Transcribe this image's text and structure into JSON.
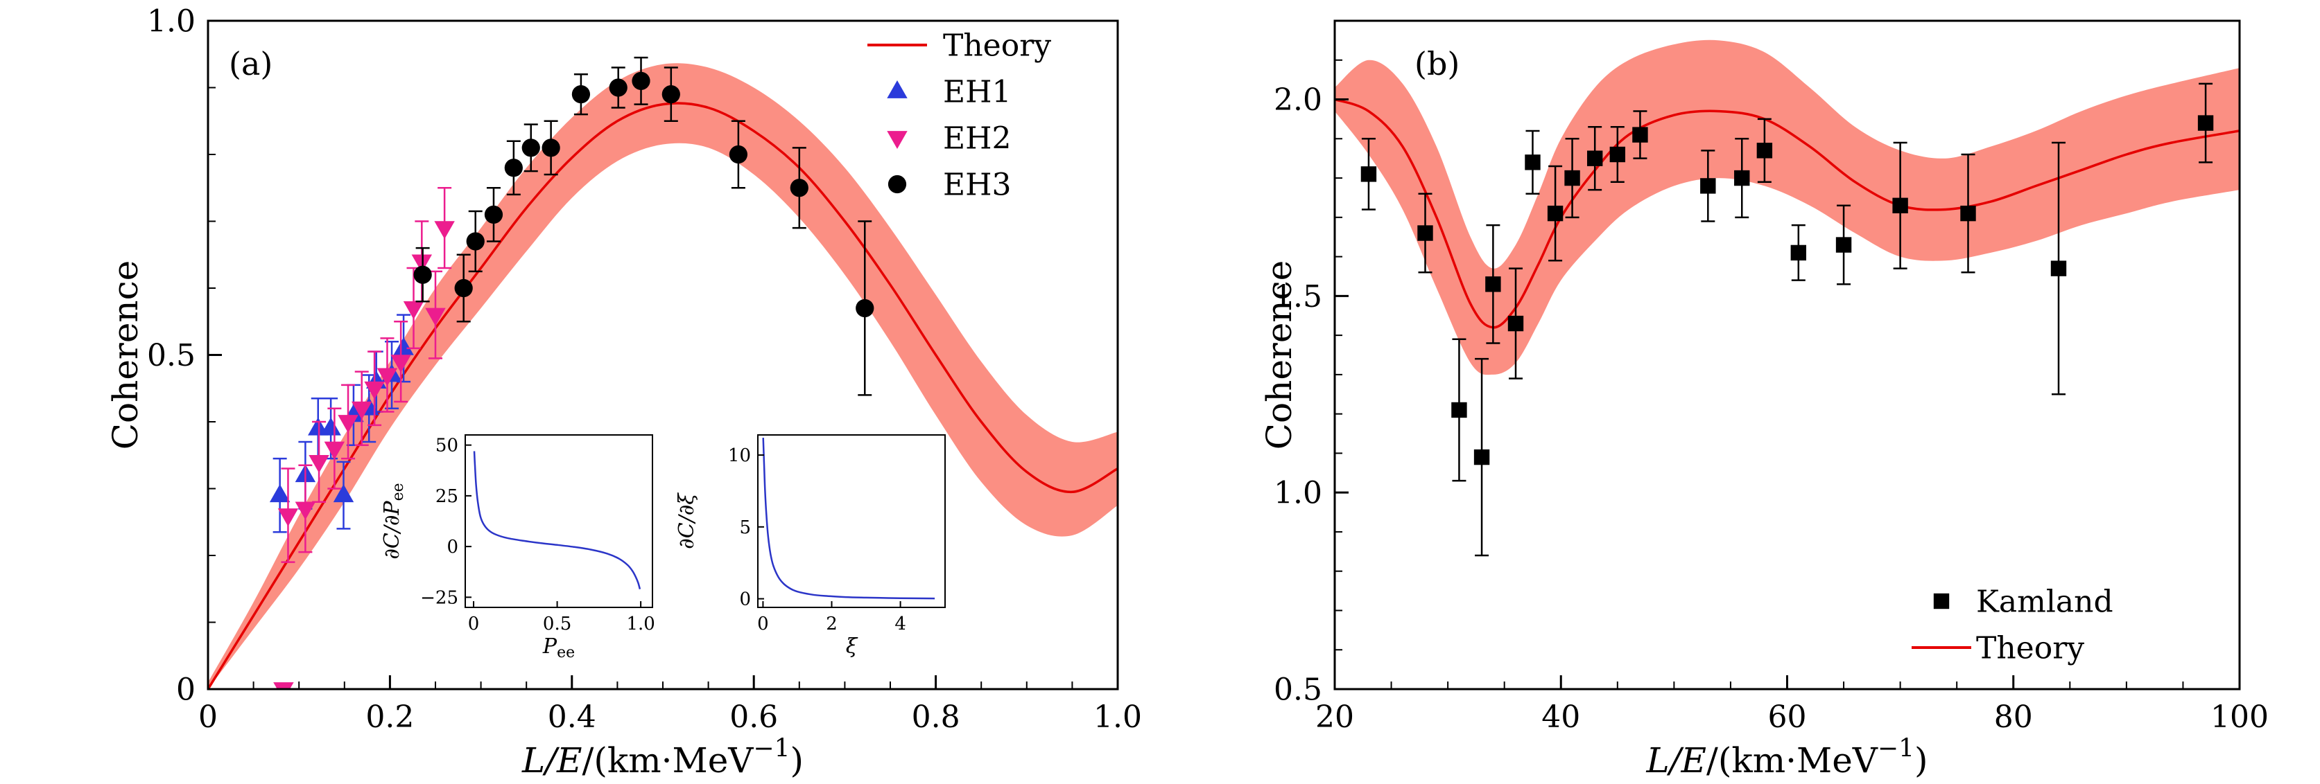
{
  "figure": {
    "background": "#ffffff"
  },
  "chart_data": [
    {
      "id": "a",
      "type": "line",
      "panel_label": "(a)",
      "xlabel_parts": [
        {
          "t": "L/E",
          "i": true
        },
        {
          "t": "/(km·MeV"
        },
        {
          "t": "−1",
          "sup": true
        },
        {
          "t": ")"
        }
      ],
      "ylabel": "Coherence",
      "xlim": [
        0,
        1.0
      ],
      "ylim": [
        0,
        1.0
      ],
      "xticks": {
        "values": [
          0,
          0.2,
          0.4,
          0.6,
          0.8,
          1.0
        ],
        "labels": [
          "0",
          "0.2",
          "0.4",
          "0.6",
          "0.8",
          "1.0"
        ],
        "minor_step": 0.05
      },
      "yticks": {
        "values": [
          0,
          0.5,
          1.0
        ],
        "labels": [
          "0",
          "0.5",
          "1.0"
        ],
        "minor_step": 0.1
      },
      "band": {
        "color": "#fa8072",
        "opacity": 0.88,
        "x": [
          0,
          0.05,
          0.1,
          0.15,
          0.2,
          0.25,
          0.3,
          0.35,
          0.4,
          0.45,
          0.5,
          0.55,
          0.6,
          0.65,
          0.7,
          0.75,
          0.8,
          0.85,
          0.9,
          0.95,
          1.0
        ],
        "upper": [
          0.01,
          0.13,
          0.26,
          0.38,
          0.49,
          0.6,
          0.69,
          0.78,
          0.855,
          0.91,
          0.935,
          0.93,
          0.9,
          0.85,
          0.78,
          0.69,
          0.59,
          0.49,
          0.41,
          0.37,
          0.385
        ],
        "lower": [
          0,
          0.09,
          0.18,
          0.28,
          0.39,
          0.485,
          0.57,
          0.655,
          0.735,
          0.79,
          0.815,
          0.81,
          0.77,
          0.705,
          0.62,
          0.52,
          0.41,
          0.31,
          0.245,
          0.23,
          0.275
        ]
      },
      "theory": {
        "label": "Theory",
        "color": "#e50000",
        "x": [
          0,
          0.05,
          0.1,
          0.15,
          0.2,
          0.25,
          0.3,
          0.35,
          0.4,
          0.45,
          0.5,
          0.55,
          0.6,
          0.65,
          0.7,
          0.75,
          0.8,
          0.85,
          0.9,
          0.95,
          1.0
        ],
        "y": [
          0,
          0.11,
          0.22,
          0.33,
          0.44,
          0.54,
          0.63,
          0.72,
          0.795,
          0.85,
          0.875,
          0.87,
          0.835,
          0.78,
          0.7,
          0.605,
          0.5,
          0.4,
          0.325,
          0.295,
          0.33
        ]
      },
      "series": [
        {
          "name": "EH1",
          "marker": "triangle-up",
          "color": "#2b3bdb",
          "points": [
            [
              0.079,
              0.29,
              0.055
            ],
            [
              0.107,
              0.32,
              0.05
            ],
            [
              0.121,
              0.39,
              0.045
            ],
            [
              0.135,
              0.39,
              0.045
            ],
            [
              0.149,
              0.29,
              0.05
            ],
            [
              0.16,
              0.41,
              0.045
            ],
            [
              0.177,
              0.42,
              0.05
            ],
            [
              0.185,
              0.46,
              0.045
            ],
            [
              0.202,
              0.47,
              0.05
            ],
            [
              0.215,
              0.51,
              0.05
            ]
          ]
        },
        {
          "name": "EH2",
          "marker": "triangle-down",
          "color": "#ec1d8e",
          "points": [
            [
              0.083,
              0.0,
              0
            ],
            [
              0.088,
              0.26,
              0.07
            ],
            [
              0.107,
              0.27,
              0.065
            ],
            [
              0.122,
              0.34,
              0.06
            ],
            [
              0.139,
              0.36,
              0.06
            ],
            [
              0.154,
              0.4,
              0.055
            ],
            [
              0.169,
              0.42,
              0.055
            ],
            [
              0.183,
              0.45,
              0.055
            ],
            [
              0.197,
              0.47,
              0.055
            ],
            [
              0.212,
              0.49,
              0.06
            ],
            [
              0.226,
              0.57,
              0.06
            ],
            [
              0.235,
              0.64,
              0.06
            ],
            [
              0.25,
              0.56,
              0.065
            ],
            [
              0.26,
              0.69,
              0.06
            ]
          ]
        },
        {
          "name": "EH3",
          "marker": "circle",
          "color": "#000000",
          "points": [
            [
              0.236,
              0.62,
              0.04
            ],
            [
              0.281,
              0.6,
              0.05
            ],
            [
              0.294,
              0.67,
              0.045
            ],
            [
              0.314,
              0.71,
              0.04
            ],
            [
              0.336,
              0.78,
              0.04
            ],
            [
              0.355,
              0.81,
              0.035
            ],
            [
              0.377,
              0.81,
              0.04
            ],
            [
              0.41,
              0.89,
              0.03
            ],
            [
              0.451,
              0.9,
              0.03
            ],
            [
              0.476,
              0.91,
              0.035
            ],
            [
              0.509,
              0.89,
              0.04
            ],
            [
              0.583,
              0.8,
              0.05
            ],
            [
              0.65,
              0.75,
              0.06
            ],
            [
              0.722,
              0.57,
              0.13
            ]
          ]
        }
      ],
      "legend": {
        "items": [
          {
            "label": "Theory",
            "type": "line",
            "color": "#e50000"
          },
          {
            "label": "EH1",
            "type": "triangle-up",
            "color": "#2b3bdb"
          },
          {
            "label": "EH2",
            "type": "triangle-down",
            "color": "#ec1d8e"
          },
          {
            "label": "EH3",
            "type": "circle",
            "color": "#000000"
          }
        ]
      },
      "insets": [
        {
          "id": "inset-dcdpee",
          "ylabel_parts": [
            {
              "t": "∂C/∂P",
              "i": true
            },
            {
              "t": "ee",
              "sub": true
            }
          ],
          "xlabel_parts": [
            {
              "t": "P",
              "i": true
            },
            {
              "t": "ee",
              "sub": true
            }
          ],
          "xlim": [
            -0.05,
            1.07
          ],
          "ylim": [
            -30,
            55
          ],
          "xticks": {
            "values": [
              0,
              0.5,
              1.0
            ],
            "labels": [
              "0",
              "0.5",
              "1.0"
            ]
          },
          "yticks": {
            "values": [
              -25,
              0,
              25,
              50
            ],
            "labels": [
              "−25",
              "0",
              "25",
              "50"
            ]
          },
          "line": {
            "color": "#2b35c8",
            "x": [
              0.004,
              0.008,
              0.015,
              0.025,
              0.04,
              0.06,
              0.09,
              0.13,
              0.2,
              0.3,
              0.4,
              0.5,
              0.6,
              0.7,
              0.8,
              0.87,
              0.92,
              0.95,
              0.97,
              0.985,
              0.995
            ],
            "y": [
              47,
              40,
              30,
              22,
              15,
              11,
              8,
              6,
              4.2,
              2.8,
              1.7,
              0.8,
              -0.2,
              -1.5,
              -3.5,
              -6,
              -9,
              -12,
              -15,
              -18,
              -21
            ]
          }
        },
        {
          "id": "inset-dcdxi",
          "ylabel_parts": [
            {
              "t": "∂C/∂ξ",
              "i": true
            }
          ],
          "xlabel_parts": [
            {
              "t": "ξ",
              "i": true
            }
          ],
          "xlim": [
            -0.15,
            5.3
          ],
          "ylim": [
            -0.6,
            11.4
          ],
          "xticks": {
            "values": [
              0,
              2,
              4
            ],
            "labels": [
              "0",
              "2",
              "4"
            ]
          },
          "yticks": {
            "values": [
              0,
              5,
              10
            ],
            "labels": [
              "0",
              "5",
              "10"
            ]
          },
          "line": {
            "color": "#2b35c8",
            "x": [
              0.005,
              0.03,
              0.06,
              0.1,
              0.15,
              0.22,
              0.3,
              0.45,
              0.6,
              0.8,
              1.0,
              1.4,
              1.8,
              2.4,
              3.0,
              4.0,
              5.0
            ],
            "y": [
              11.2,
              9.5,
              7.5,
              5.8,
              4.3,
              3.1,
              2.3,
              1.5,
              1.05,
              0.7,
              0.5,
              0.3,
              0.2,
              0.12,
              0.08,
              0.04,
              0.02
            ]
          }
        }
      ]
    },
    {
      "id": "b",
      "type": "line",
      "panel_label": "(b)",
      "xlabel_parts": [
        {
          "t": "L/E",
          "i": true
        },
        {
          "t": "/(km·MeV"
        },
        {
          "t": "−1",
          "sup": true
        },
        {
          "t": ")"
        }
      ],
      "ylabel": "Coherence",
      "xlim": [
        20,
        100
      ],
      "ylim": [
        0.5,
        2.2
      ],
      "xticks": {
        "values": [
          20,
          40,
          60,
          80,
          100
        ],
        "labels": [
          "20",
          "40",
          "60",
          "80",
          "100"
        ],
        "minor_step": 5
      },
      "yticks": {
        "values": [
          0.5,
          1.0,
          1.5,
          2.0
        ],
        "labels": [
          "0.5",
          "1.0",
          "1.5",
          "2.0"
        ],
        "minor_step": 0.1
      },
      "band": {
        "color": "#fa8072",
        "opacity": 0.88,
        "x": [
          20,
          23,
          26,
          29,
          32,
          34,
          36,
          38,
          40,
          43,
          46,
          50,
          54,
          58,
          62,
          66,
          70,
          74,
          78,
          82,
          86,
          90,
          94,
          100
        ],
        "upper": [
          2.03,
          2.1,
          2.04,
          1.88,
          1.65,
          1.57,
          1.63,
          1.76,
          1.9,
          2.03,
          2.1,
          2.14,
          2.15,
          2.12,
          2.03,
          1.93,
          1.87,
          1.85,
          1.88,
          1.92,
          1.97,
          2.01,
          2.04,
          2.08
        ],
        "lower": [
          1.97,
          1.86,
          1.72,
          1.52,
          1.33,
          1.3,
          1.33,
          1.43,
          1.54,
          1.64,
          1.72,
          1.78,
          1.8,
          1.78,
          1.73,
          1.66,
          1.6,
          1.59,
          1.61,
          1.64,
          1.68,
          1.71,
          1.74,
          1.77
        ]
      },
      "theory": {
        "label": "Theory",
        "color": "#e50000",
        "x": [
          20,
          23,
          26,
          29,
          32,
          34,
          36,
          38,
          40,
          43,
          46,
          50,
          54,
          58,
          62,
          66,
          70,
          74,
          78,
          82,
          86,
          90,
          94,
          100
        ],
        "y": [
          2.0,
          1.97,
          1.88,
          1.7,
          1.48,
          1.42,
          1.47,
          1.58,
          1.7,
          1.82,
          1.91,
          1.96,
          1.97,
          1.95,
          1.88,
          1.79,
          1.73,
          1.72,
          1.74,
          1.78,
          1.82,
          1.86,
          1.89,
          1.92
        ]
      },
      "series": [
        {
          "name": "Kamland",
          "marker": "square",
          "color": "#000000",
          "points": [
            [
              23,
              1.81,
              0.09
            ],
            [
              28,
              1.66,
              0.1
            ],
            [
              31,
              1.21,
              0.18
            ],
            [
              33,
              1.09,
              0.25
            ],
            [
              34,
              1.53,
              0.15
            ],
            [
              36,
              1.43,
              0.14
            ],
            [
              37.5,
              1.84,
              0.08
            ],
            [
              39.5,
              1.71,
              0.12
            ],
            [
              41,
              1.8,
              0.1
            ],
            [
              43,
              1.85,
              0.08
            ],
            [
              45,
              1.86,
              0.07
            ],
            [
              47,
              1.91,
              0.06
            ],
            [
              53,
              1.78,
              0.09
            ],
            [
              56,
              1.8,
              0.1
            ],
            [
              58,
              1.87,
              0.08
            ],
            [
              61,
              1.61,
              0.07
            ],
            [
              65,
              1.63,
              0.1
            ],
            [
              70,
              1.73,
              0.16
            ],
            [
              76,
              1.71,
              0.15
            ],
            [
              84,
              1.57,
              0.32
            ],
            [
              97,
              1.94,
              0.1
            ]
          ]
        }
      ],
      "legend": {
        "items": [
          {
            "label": "Kamland",
            "type": "square",
            "color": "#000000"
          },
          {
            "label": "Theory",
            "type": "line",
            "color": "#e50000"
          }
        ]
      }
    }
  ]
}
